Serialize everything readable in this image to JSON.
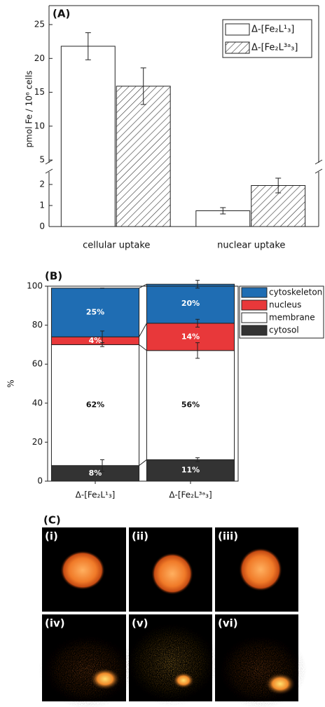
{
  "chart_data": [
    {
      "type": "bar",
      "title": "(A)",
      "y_label": "pmol Fe / 10⁶ cells",
      "categories": [
        "cellular uptake",
        "nuclear uptake"
      ],
      "series": [
        {
          "name": "Δ-[Fe₂L¹₃]",
          "color": "#ffffff",
          "hatch": false,
          "values": [
            21.8,
            0.75
          ],
          "errors": [
            2.0,
            0.15
          ]
        },
        {
          "name": "Δ-[Fe₂L³ᵃ₃]",
          "color": "#ffffff",
          "hatch": true,
          "values": [
            15.9,
            1.95
          ],
          "errors": [
            2.7,
            0.35
          ]
        }
      ],
      "ylim": [
        0,
        27.8
      ],
      "axis_break": [
        2.6,
        4.6
      ],
      "yticks": [
        0,
        1,
        2,
        5,
        10,
        15,
        20,
        25
      ],
      "legend": "upper right"
    },
    {
      "type": "stacked_bar",
      "title": "(B)",
      "y_label": "%",
      "categories": [
        "Δ-[Fe₂L¹₃]",
        "Δ-[Fe₂L³ᵃ₃]"
      ],
      "series": [
        {
          "name": "cytosol",
          "color": "#333333",
          "values": [
            8,
            11
          ],
          "value_labels": [
            "8%",
            "11%"
          ],
          "errors": [
            3,
            1
          ]
        },
        {
          "name": "membrane",
          "color": "#ffffff",
          "values": [
            62,
            56
          ],
          "value_labels": [
            "62%",
            "56%"
          ],
          "errors": [
            1,
            4
          ]
        },
        {
          "name": "nucleus",
          "color": "#e8383a",
          "values": [
            4,
            14
          ],
          "value_labels": [
            "4%",
            "14%"
          ],
          "errors": [
            3,
            2
          ]
        },
        {
          "name": "cytoskeleton",
          "color": "#1f6db3",
          "values": [
            25,
            20
          ],
          "value_labels": [
            "25%",
            "20%"
          ],
          "errors": [
            0,
            2
          ]
        }
      ],
      "ylim": [
        0,
        100
      ],
      "yticks": [
        0,
        20,
        40,
        60,
        80,
        100
      ],
      "legend": "outside right"
    }
  ],
  "panel_c": {
    "title": "(C)",
    "images": [
      "(i)",
      "(ii)",
      "(iii)",
      "(iv)",
      "(v)",
      "(vi)"
    ]
  }
}
